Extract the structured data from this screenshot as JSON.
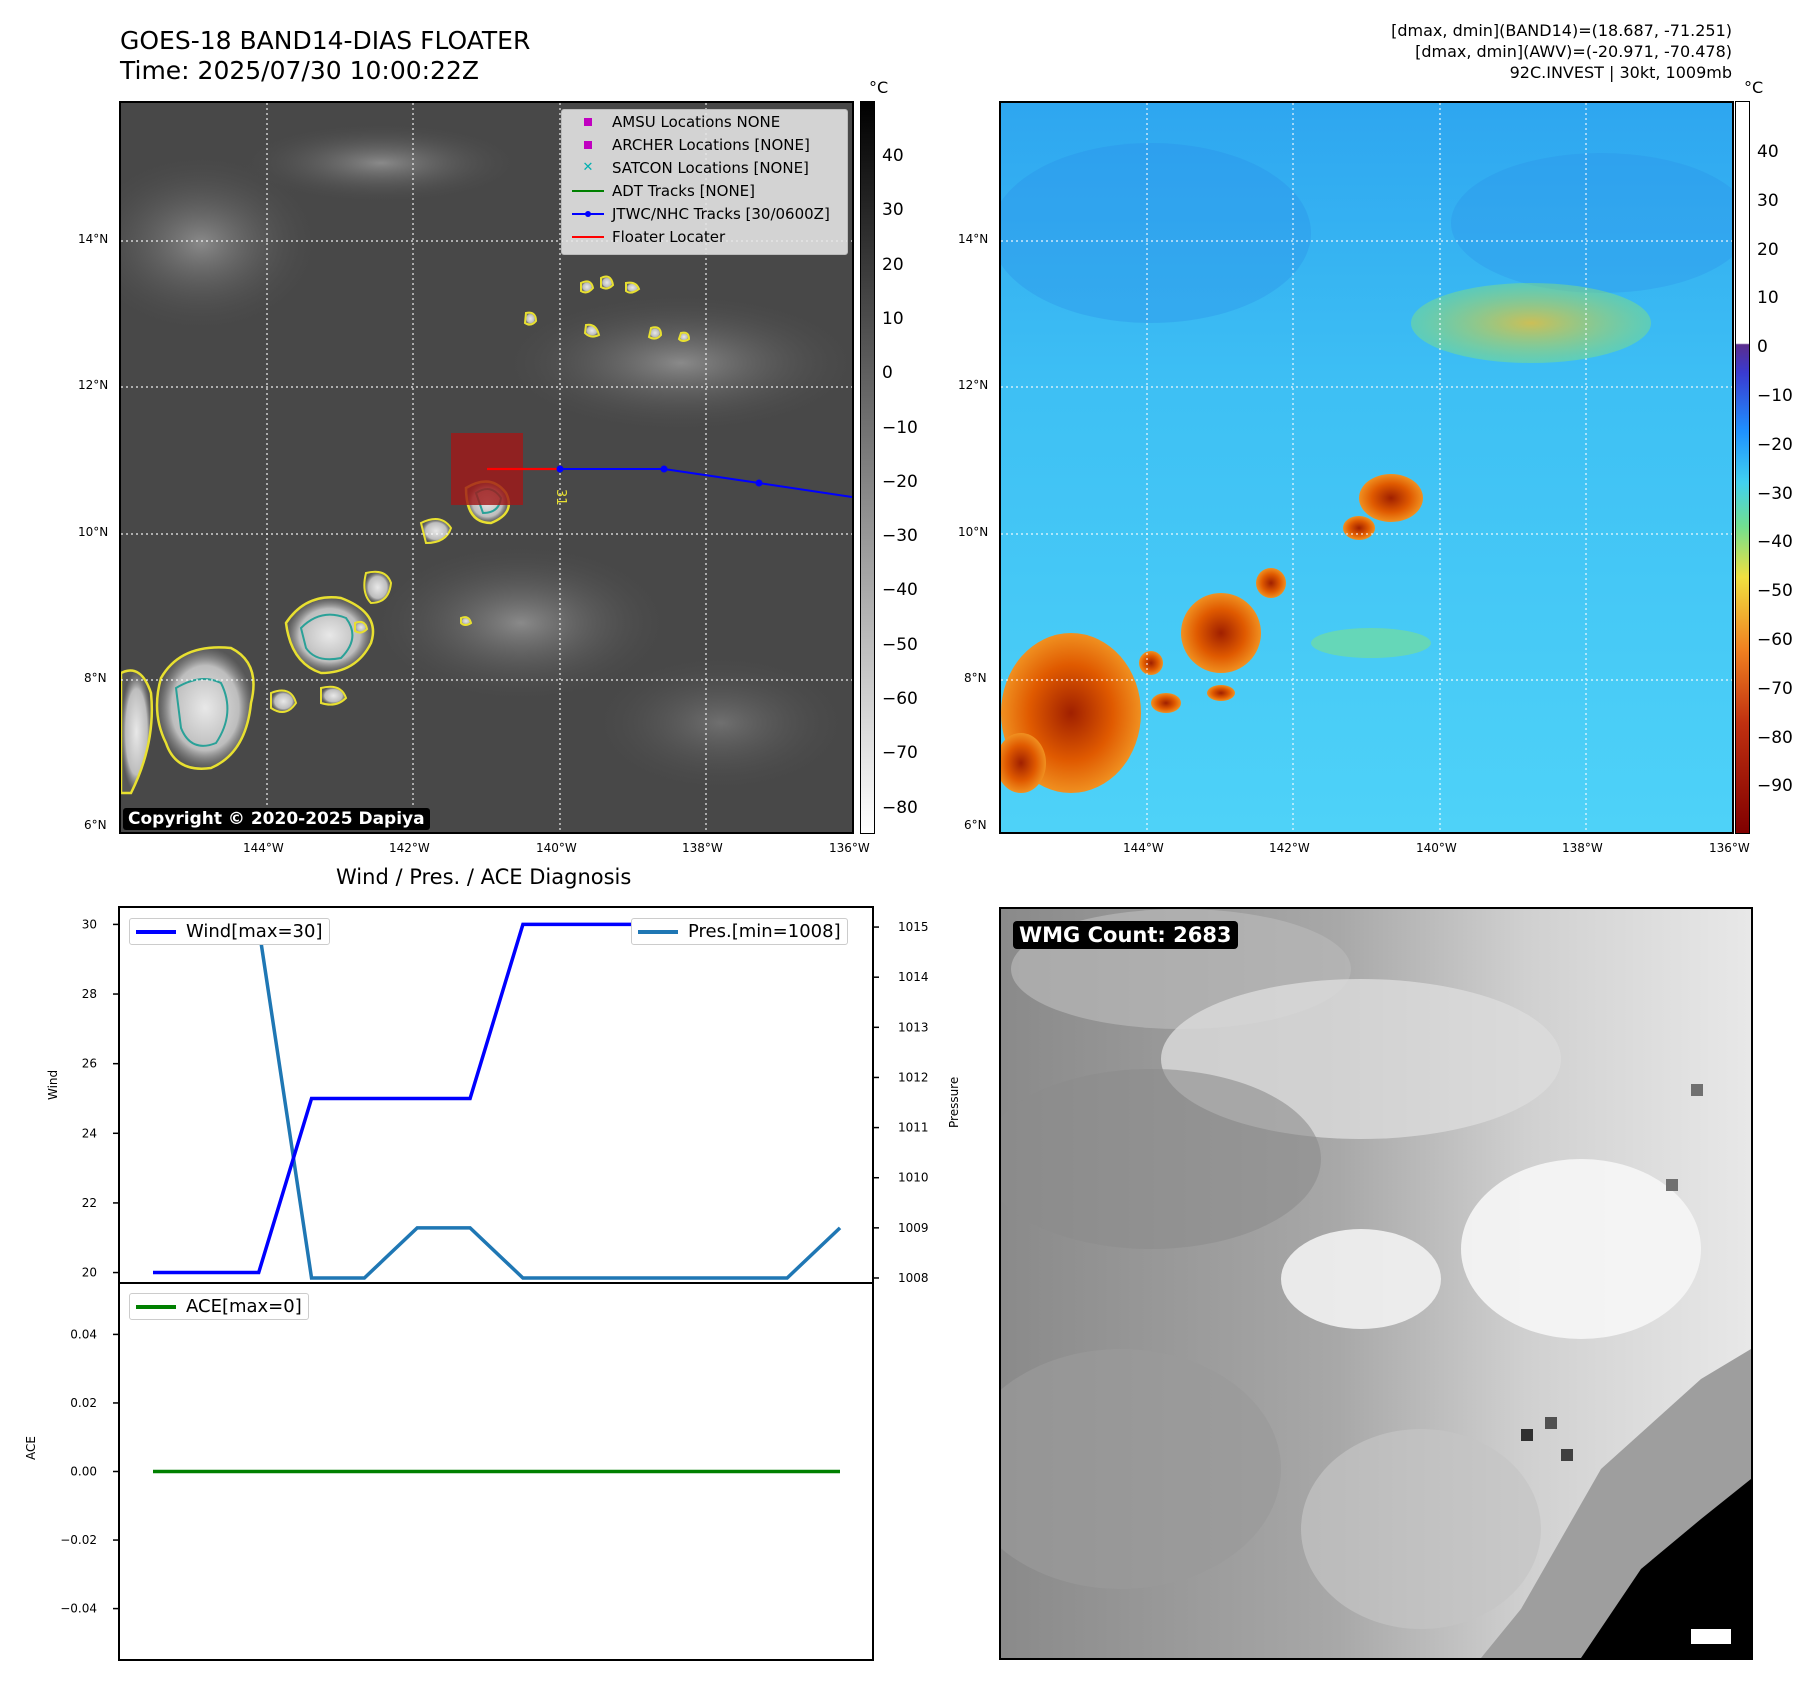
{
  "header": {
    "title_line1": "GOES-18 BAND14-DIAS FLOATER",
    "title_line2": "Time: 2025/07/30 10:00:22Z",
    "info_line1": "[dmax, dmin](BAND14)=(18.687, -71.251)",
    "info_line2": "[dmax, dmin](AWV)=(-20.971, -70.478)",
    "info_line3": "92C.INVEST | 30kt, 1009mb"
  },
  "maps": {
    "lat_labels": [
      "14°N",
      "12°N",
      "10°N",
      "8°N",
      "6°N"
    ],
    "lon_labels": [
      "144°W",
      "142°W",
      "140°W",
      "138°W",
      "136°W"
    ],
    "unit": "°C",
    "ir_colorbar_ticks": [
      "40",
      "30",
      "20",
      "10",
      "0",
      "−10",
      "−20",
      "−30",
      "−40",
      "−50",
      "−60",
      "−70",
      "−80"
    ],
    "awv_colorbar_ticks": [
      "40",
      "30",
      "20",
      "10",
      "0",
      "−10",
      "−20",
      "−30",
      "−40",
      "−50",
      "−60",
      "−70",
      "−80",
      "−90"
    ],
    "copyright": "Copyright © 2020-2025 Dapiya",
    "legend": [
      {
        "label": "AMSU Locations NONE",
        "symbol": "square",
        "color": "#c000c0"
      },
      {
        "label": "ARCHER Locations [NONE]",
        "symbol": "square",
        "color": "#c000c0"
      },
      {
        "label": "SATCON Locations [NONE]",
        "symbol": "x",
        "color": "#00b0b0"
      },
      {
        "label": "ADT Tracks [NONE]",
        "symbol": "line",
        "color": "#008000"
      },
      {
        "label": "JTWC/NHC Tracks [30/0600Z]",
        "symbol": "line-dot",
        "color": "#0000ff"
      },
      {
        "label": "Floater Locater",
        "symbol": "line",
        "color": "#ff0000"
      }
    ],
    "track_label": "31"
  },
  "diag": {
    "title": "Wind / Pres. / ACE Diagnosis",
    "wind_label": "Wind",
    "pressure_label": "Pressure",
    "ace_label": "ACE",
    "wind_legend": "Wind[max=30]",
    "pres_legend": "Pres.[min=1008]",
    "ace_legend": "ACE[max=0]"
  },
  "wmg": {
    "label": "WMG Count: 2683"
  },
  "colors": {
    "wind": "#0000ff",
    "pressure": "#1f77b4",
    "ace": "#008000",
    "track": "#0000ff",
    "floater": "#ff0000"
  },
  "chart_data": [
    {
      "type": "line",
      "title": "Wind / Pres. / ACE Diagnosis",
      "x": [
        0,
        1,
        2,
        3,
        4,
        5,
        6,
        7,
        8,
        9,
        10,
        11,
        12,
        13
      ],
      "series": [
        {
          "name": "Wind[max=30]",
          "axis": "left",
          "ylabel": "Wind",
          "values": [
            20,
            20,
            20,
            25,
            25,
            25,
            25,
            30,
            30,
            30,
            30,
            30,
            30,
            30
          ]
        },
        {
          "name": "Pres.[min=1008]",
          "axis": "right",
          "ylabel": "Pressure",
          "values": [
            1015,
            1015,
            1015,
            1008,
            1008,
            1009,
            1009,
            1008,
            1008,
            1008,
            1008,
            1008,
            1008,
            1009
          ]
        }
      ],
      "ylim_left": [
        19.7,
        30.5
      ],
      "ylim_right": [
        1007.9,
        1015.4
      ],
      "yticks_left": [
        20,
        22,
        24,
        26,
        28,
        30
      ],
      "yticks_right": [
        1008,
        1009,
        1010,
        1011,
        1012,
        1013,
        1014,
        1015
      ]
    },
    {
      "type": "line",
      "x": [
        0,
        1,
        2,
        3,
        4,
        5,
        6,
        7,
        8,
        9,
        10,
        11,
        12,
        13
      ],
      "series": [
        {
          "name": "ACE[max=0]",
          "ylabel": "ACE",
          "values": [
            0,
            0,
            0,
            0,
            0,
            0,
            0,
            0,
            0,
            0,
            0,
            0,
            0,
            0
          ]
        }
      ],
      "ylim": [
        -0.055,
        0.055
      ],
      "yticks": [
        0.04,
        0.02,
        0.0,
        -0.02,
        -0.04
      ]
    }
  ]
}
